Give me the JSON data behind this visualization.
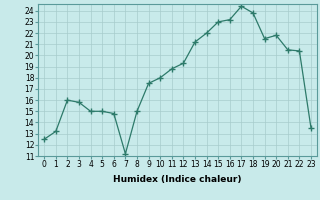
{
  "x": [
    0,
    1,
    2,
    3,
    4,
    5,
    6,
    7,
    8,
    9,
    10,
    11,
    12,
    13,
    14,
    15,
    16,
    17,
    18,
    19,
    20,
    21,
    22,
    23
  ],
  "y": [
    12.5,
    13.2,
    16.0,
    15.8,
    15.0,
    15.0,
    14.8,
    11.2,
    15.0,
    17.5,
    18.0,
    18.8,
    19.3,
    21.2,
    22.0,
    23.0,
    23.2,
    24.4,
    23.8,
    21.5,
    21.8,
    20.5,
    20.4,
    13.5
  ],
  "xlabel": "Humidex (Indice chaleur)",
  "xlim": [
    -0.5,
    23.5
  ],
  "ylim": [
    11,
    24.6
  ],
  "yticks": [
    11,
    12,
    13,
    14,
    15,
    16,
    17,
    18,
    19,
    20,
    21,
    22,
    23,
    24
  ],
  "xticks": [
    0,
    1,
    2,
    3,
    4,
    5,
    6,
    7,
    8,
    9,
    10,
    11,
    12,
    13,
    14,
    15,
    16,
    17,
    18,
    19,
    20,
    21,
    22,
    23
  ],
  "line_color": "#2d7a6a",
  "marker": "+",
  "bg_color": "#c8eaea",
  "grid_color": "#a8cccc",
  "label_fontsize": 6.5,
  "tick_fontsize": 5.5
}
